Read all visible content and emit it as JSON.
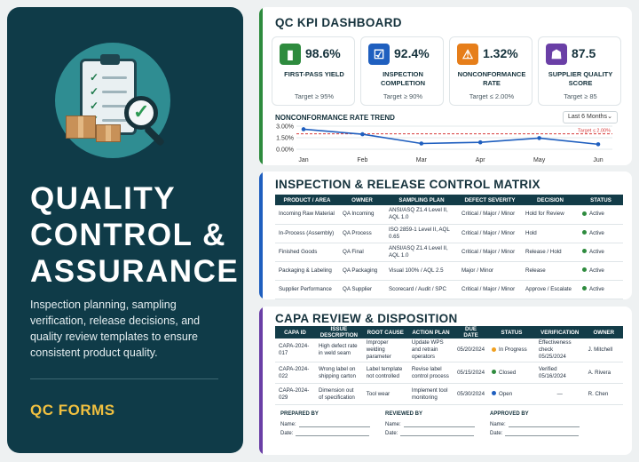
{
  "left": {
    "title_lines": [
      "QUALITY",
      "CONTROL &",
      "ASSURANCE"
    ],
    "description": "Inspection planning, sampling verification, release decisions, and quality review templates to ensure consistent product quality.",
    "tag": "QC FORMS"
  },
  "kpi": {
    "title": "QC KPI DASHBOARD",
    "cards": [
      {
        "icon": "bar-chart-icon",
        "color": "#2e8b3e",
        "value": "98.6%",
        "label": "FIRST-PASS YIELD",
        "target": "Target ≥ 95%"
      },
      {
        "icon": "clipboard-check-icon",
        "color": "#1f5fbf",
        "value": "92.4%",
        "label": "INSPECTION COMPLETION",
        "target": "Target ≥ 90%"
      },
      {
        "icon": "warning-icon",
        "color": "#e67e1a",
        "value": "1.32%",
        "label": "NONCONFORMANCE RATE",
        "target": "Target ≤ 2.00%"
      },
      {
        "icon": "team-icon",
        "color": "#6a3fa6",
        "value": "87.5",
        "label": "SUPPLIER QUALITY SCORE",
        "target": "Target ≥ 85"
      }
    ],
    "trend_title": "NONCONFORMANCE RATE TREND",
    "range_select": "Last 6 Months"
  },
  "chart_data": {
    "type": "line",
    "title": "NONCONFORMANCE RATE TREND",
    "categories": [
      "Jan",
      "Feb",
      "Mar",
      "Apr",
      "May",
      "Jun"
    ],
    "series": [
      {
        "values": [
          2.6,
          1.95,
          0.75,
          0.9,
          1.45,
          0.65
        ]
      }
    ],
    "ylim": [
      0,
      3
    ],
    "yticks": [
      "3.00%",
      "1.50%",
      "0.00%"
    ],
    "target": {
      "value": 2.0,
      "label": "Target ≤ 2.00%",
      "color": "#d63b3b"
    },
    "line_color": "#1f5fbf",
    "grid": true
  },
  "matrix": {
    "title": "INSPECTION & RELEASE CONTROL MATRIX",
    "headers": [
      "PRODUCT / AREA",
      "OWNER",
      "SAMPLING PLAN",
      "DEFECT SEVERITY",
      "DECISION",
      "STATUS"
    ],
    "rows": [
      [
        "Incoming Raw Material",
        "QA Incoming",
        "ANSI/ASQ Z1.4 Level II, AQL 1.0",
        "Critical / Major / Minor",
        "Hold for Review",
        "Active"
      ],
      [
        "In-Process (Assembly)",
        "QA Process",
        "ISO 2859-1 Level II, AQL 0.65",
        "Critical / Major / Minor",
        "Hold",
        "Active"
      ],
      [
        "Finished Goods",
        "QA Final",
        "ANSI/ASQ Z1.4 Level II, AQL 1.0",
        "Critical / Major / Minor",
        "Release / Hold",
        "Active"
      ],
      [
        "Packaging & Labeling",
        "QA Packaging",
        "Visual 100% / AQL 2.5",
        "Major / Minor",
        "Release",
        "Active"
      ],
      [
        "Supplier Performance",
        "QA Supplier",
        "Scorecard / Audit / SPC",
        "Critical / Major / Minor",
        "Approve / Escalate",
        "Active"
      ]
    ],
    "status_color": "#2e8b3e"
  },
  "capa": {
    "title": "CAPA REVIEW & DISPOSITION",
    "headers": [
      "CAPA ID",
      "ISSUE DESCRIPTION",
      "ROOT CAUSE",
      "ACTION PLAN",
      "DUE DATE",
      "STATUS",
      "VERIFICATION",
      "OWNER"
    ],
    "rows": [
      {
        "cells": [
          "CAPA-2024-017",
          "High defect rate in weld seam",
          "Improper welding parameter",
          "Update WPS and retrain operators",
          "05/20/2024"
        ],
        "status": "In Progress",
        "status_color": "#f0a020",
        "verification": "Effectiveness check 05/25/2024",
        "owner": "J. Mitchell"
      },
      {
        "cells": [
          "CAPA-2024-022",
          "Wrong label on shipping carton",
          "Label template not controlled",
          "Revise label control process",
          "05/15/2024"
        ],
        "status": "Closed",
        "status_color": "#2e8b3e",
        "verification": "Verified 05/16/2024",
        "owner": "A. Rivera"
      },
      {
        "cells": [
          "CAPA-2024-029",
          "Dimension out of specification",
          "Tool wear",
          "Implement tool monitoring",
          "05/30/2024"
        ],
        "status": "Open",
        "status_color": "#1f5fbf",
        "verification": "—",
        "owner": "R. Chen"
      }
    ],
    "signatures": [
      {
        "title": "PREPARED BY",
        "name": "Name:",
        "date": "Date:"
      },
      {
        "title": "REVIEWED BY",
        "name": "Name:",
        "date": "Date:"
      },
      {
        "title": "APPROVED BY",
        "name": "Name:",
        "date": "Date:"
      }
    ]
  }
}
